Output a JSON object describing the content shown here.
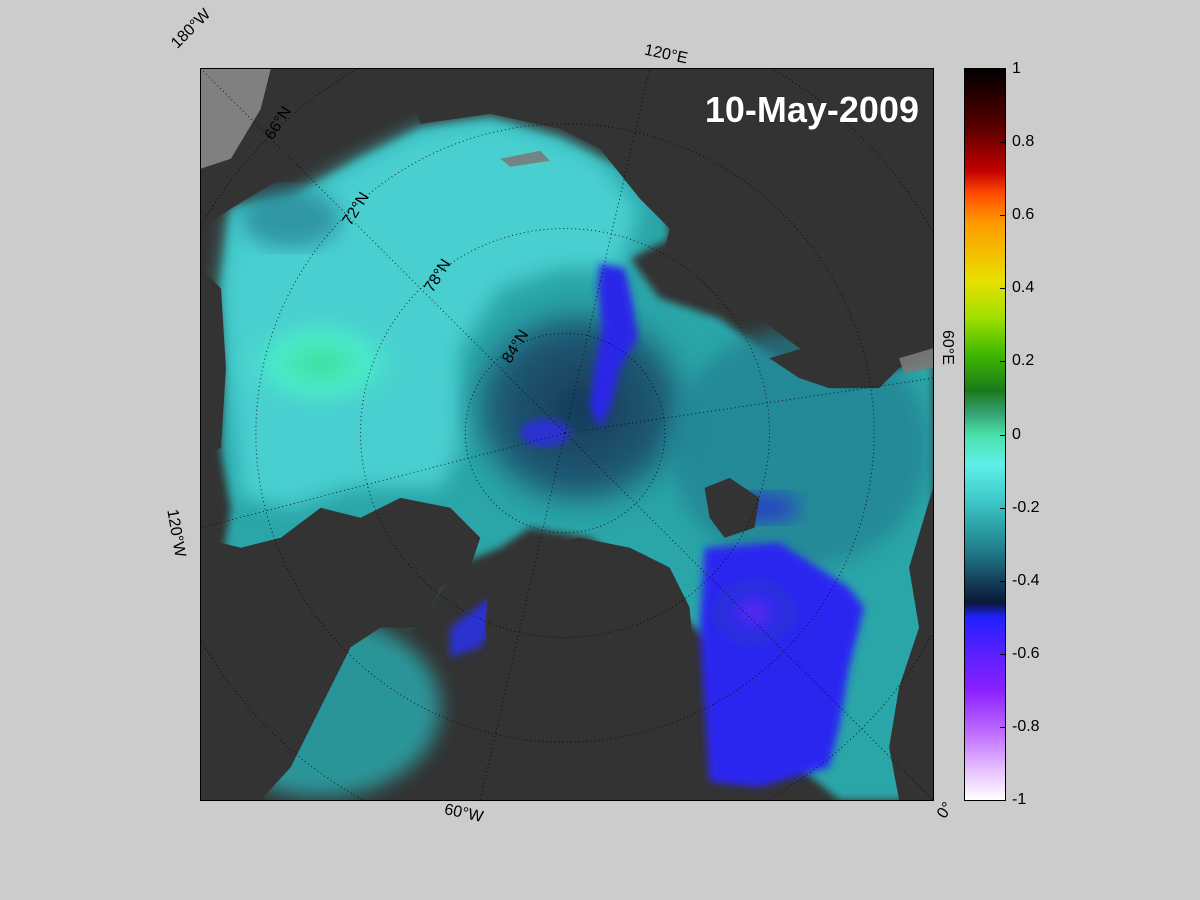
{
  "map": {
    "title": "10-May-2009",
    "projection": "north-polar-stereographic",
    "longitude_labels": {
      "w180": "180°W",
      "e120": "120°E",
      "e60": "60°E",
      "w120": "120°W",
      "w60": "60°W",
      "zero": "0°"
    },
    "latitude_labels": {
      "n66": "66°N",
      "n72": "72°N",
      "n78": "78°N",
      "n84": "84°N"
    },
    "colors": {
      "background": "#cccccc",
      "land": "#333333",
      "land_shadow": "#7a7a7a",
      "text_on_map": "#ffffff"
    }
  },
  "colorbar": {
    "range": [
      -1,
      1
    ],
    "ticks": [
      "1",
      "0.8",
      "0.6",
      "0.4",
      "0.2",
      "0",
      "-0.2",
      "-0.4",
      "-0.6",
      "-0.8",
      "-1"
    ],
    "colormap_note": "white-purple-blue-teal-cyan-green-yellow-orange-red-black"
  }
}
